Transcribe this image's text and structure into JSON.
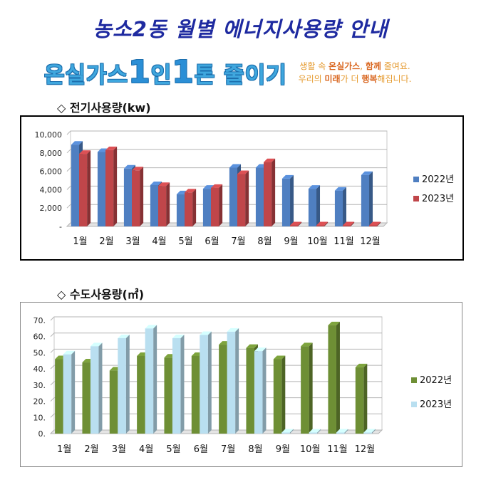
{
  "header": {
    "title": "농소2동 월별 에너지사용량 안내",
    "slogan_a": "온실가스",
    "slogan_b": "1",
    "slogan_c": "인",
    "slogan_d": "1",
    "slogan_e": "톤 줄이기",
    "sub1_a": "생활 속 ",
    "sub1_b": "온실가스",
    "sub1_c": ", ",
    "sub1_d": "함께",
    "sub1_e": " 줄여요.",
    "sub2_a": "우리의 ",
    "sub2_b": "미래",
    "sub2_c": "가 더 ",
    "sub2_d": "행복",
    "sub2_e": "해집니다."
  },
  "sections": {
    "electric_title": "◇ 전기사용량(kw)",
    "water_title": "◇ 수도사용량(㎥)"
  },
  "colors": {
    "elec_2022": "#4f7fc1",
    "elec_2023": "#c0464a",
    "water_2022": "#6e8f35",
    "water_2023": "#b9dff0"
  },
  "chart_data": [
    {
      "type": "bar",
      "categories": [
        "1월",
        "2월",
        "3월",
        "4월",
        "5월",
        "6월",
        "7월",
        "8월",
        "9월",
        "10월",
        "11월",
        "12월"
      ],
      "series": [
        {
          "name": "2022년",
          "values": [
            8900,
            8100,
            6300,
            4500,
            3500,
            4100,
            6400,
            6400,
            5200,
            4100,
            3900,
            5600
          ]
        },
        {
          "name": "2023년",
          "values": [
            7900,
            8300,
            6100,
            4400,
            3700,
            4200,
            5700,
            7000,
            0,
            0,
            0,
            0
          ]
        }
      ],
      "yticks": [
        "-",
        "2,000",
        "4,000",
        "6,000",
        "8,000",
        "10,000"
      ],
      "ylim": [
        0,
        10000
      ],
      "grid": true,
      "legend": "right"
    },
    {
      "type": "bar",
      "categories": [
        "1월",
        "2월",
        "3월",
        "4월",
        "5월",
        "6월",
        "7월",
        "8월",
        "9월",
        "10월",
        "11월",
        "12월"
      ],
      "series": [
        {
          "name": "2022년",
          "values": [
            46,
            44,
            39,
            48,
            47,
            48,
            55,
            53,
            46,
            54,
            67,
            41
          ]
        },
        {
          "name": "2023년",
          "values": [
            49,
            54,
            59,
            65,
            59,
            61,
            63,
            51,
            0,
            0,
            0,
            0
          ]
        }
      ],
      "yticks": [
        "0.",
        "10.",
        "20.",
        "30.",
        "40.",
        "50.",
        "60.",
        "70."
      ],
      "ylim": [
        0,
        70
      ],
      "grid": true,
      "legend": "right"
    }
  ]
}
